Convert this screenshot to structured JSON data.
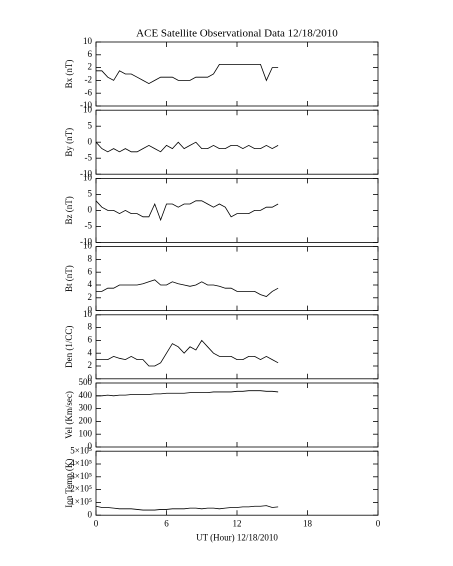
{
  "chart_data": [
    {
      "type": "line",
      "title": "ACE Satellite Observational Data   12/18/2010",
      "ylabel": "Bx (nT)",
      "x": [
        0,
        0.5,
        1,
        1.5,
        2,
        2.5,
        3,
        3.5,
        4,
        4.5,
        5,
        5.5,
        6,
        6.5,
        7,
        7.5,
        8,
        8.5,
        9,
        9.5,
        10,
        10.5,
        11,
        11.5,
        12,
        12.5,
        13,
        13.5,
        14,
        14.5,
        15,
        15.5
      ],
      "values": [
        1,
        1,
        -1,
        -2,
        1,
        0,
        0,
        -1,
        -2,
        -3,
        -2,
        -1,
        -1,
        -1,
        -2,
        -2,
        -2,
        -1,
        -1,
        -1,
        0,
        3,
        3,
        3,
        3,
        3,
        3,
        3,
        3,
        -2,
        2,
        2
      ],
      "ylim": [
        -10,
        10
      ],
      "yticks": [
        -10,
        -6,
        -2,
        2,
        6,
        10
      ],
      "color": "#000000"
    },
    {
      "type": "line",
      "ylabel": "By (nT)",
      "x": [
        0,
        0.5,
        1,
        1.5,
        2,
        2.5,
        3,
        3.5,
        4,
        4.5,
        5,
        5.5,
        6,
        6.5,
        7,
        7.5,
        8,
        8.5,
        9,
        9.5,
        10,
        10.5,
        11,
        11.5,
        12,
        12.5,
        13,
        13.5,
        14,
        14.5,
        15,
        15.5
      ],
      "values": [
        0,
        -2,
        -3,
        -2,
        -3,
        -2,
        -3,
        -3,
        -2,
        -1,
        -2,
        -3,
        -1,
        -2,
        0,
        -2,
        -1,
        0,
        -2,
        -2,
        -1,
        -2,
        -2,
        -1,
        -1,
        -2,
        -1,
        -2,
        -2,
        -1,
        -2,
        -1
      ],
      "ylim": [
        -10,
        10
      ],
      "yticks": [
        -10,
        -5,
        0,
        5,
        10
      ],
      "color": "#000000"
    },
    {
      "type": "line",
      "ylabel": "Bz (nT)",
      "x": [
        0,
        0.5,
        1,
        1.5,
        2,
        2.5,
        3,
        3.5,
        4,
        4.5,
        5,
        5.5,
        6,
        6.5,
        7,
        7.5,
        8,
        8.5,
        9,
        9.5,
        10,
        10.5,
        11,
        11.5,
        12,
        12.5,
        13,
        13.5,
        14,
        14.5,
        15,
        15.5
      ],
      "values": [
        3,
        1,
        0,
        0,
        -1,
        0,
        -1,
        -1,
        -2,
        -2,
        2,
        -3,
        2,
        2,
        1,
        2,
        2,
        3,
        3,
        2,
        1,
        2,
        1,
        -2,
        -1,
        -1,
        -1,
        0,
        0,
        1,
        1,
        2
      ],
      "ylim": [
        -10,
        10
      ],
      "yticks": [
        -10,
        -5,
        0,
        5,
        10
      ],
      "color": "#000000"
    },
    {
      "type": "line",
      "ylabel": "Bt (nT)",
      "x": [
        0,
        0.5,
        1,
        1.5,
        2,
        2.5,
        3,
        3.5,
        4,
        4.5,
        5,
        5.5,
        6,
        6.5,
        7,
        7.5,
        8,
        8.5,
        9,
        9.5,
        10,
        10.5,
        11,
        11.5,
        12,
        12.5,
        13,
        13.5,
        14,
        14.5,
        15,
        15.5
      ],
      "values": [
        3,
        3,
        3.5,
        3.5,
        4,
        4,
        4,
        4,
        4.2,
        4.5,
        4.8,
        4,
        4,
        4.5,
        4.2,
        4,
        3.8,
        4,
        4.5,
        4,
        4,
        3.8,
        3.5,
        3.5,
        3,
        3,
        3,
        3,
        2.5,
        2.2,
        3,
        3.5
      ],
      "ylim": [
        0,
        10
      ],
      "yticks": [
        0,
        2,
        4,
        6,
        8,
        10
      ],
      "color": "#000000"
    },
    {
      "type": "line",
      "ylabel": "Den (1/CC)",
      "x": [
        0,
        0.5,
        1,
        1.5,
        2,
        2.5,
        3,
        3.5,
        4,
        4.5,
        5,
        5.5,
        6,
        6.5,
        7,
        7.5,
        8,
        8.5,
        9,
        9.5,
        10,
        10.5,
        11,
        11.5,
        12,
        12.5,
        13,
        13.5,
        14,
        14.5,
        15,
        15.5
      ],
      "values": [
        3,
        3,
        3,
        3.5,
        3.2,
        3,
        3.5,
        3,
        3,
        2,
        2,
        2.5,
        4,
        5.5,
        5,
        4,
        5,
        4.5,
        6,
        5,
        4,
        3.5,
        3.5,
        3.5,
        3,
        3,
        3.5,
        3.5,
        3,
        3.5,
        3,
        2.5
      ],
      "ylim": [
        0,
        10
      ],
      "yticks": [
        0,
        2,
        4,
        6,
        8,
        10
      ],
      "color": "#000000"
    },
    {
      "type": "line",
      "ylabel": "Vel (Km/sec)",
      "x": [
        0,
        0.5,
        1,
        1.5,
        2,
        2.5,
        3,
        3.5,
        4,
        4.5,
        5,
        5.5,
        6,
        6.5,
        7,
        7.5,
        8,
        8.5,
        9,
        9.5,
        10,
        10.5,
        11,
        11.5,
        12,
        12.5,
        13,
        13.5,
        14,
        14.5,
        15,
        15.5
      ],
      "values": [
        400,
        400,
        405,
        400,
        405,
        405,
        410,
        410,
        410,
        410,
        415,
        415,
        420,
        420,
        420,
        420,
        425,
        425,
        425,
        425,
        430,
        430,
        430,
        430,
        435,
        435,
        440,
        440,
        440,
        435,
        435,
        430
      ],
      "ylim": [
        0,
        500
      ],
      "yticks": [
        0,
        100,
        200,
        300,
        400,
        500
      ],
      "color": "#000000"
    },
    {
      "type": "line",
      "ylabel": "Ion Temp (K)",
      "xlabel": "UT (Hour)   12/18/2010",
      "x": [
        0,
        0.5,
        1,
        1.5,
        2,
        2.5,
        3,
        3.5,
        4,
        4.5,
        5,
        5.5,
        6,
        6.5,
        7,
        7.5,
        8,
        8.5,
        9,
        9.5,
        10,
        10.5,
        11,
        11.5,
        12,
        12.5,
        13,
        13.5,
        14,
        14.5,
        15,
        15.5
      ],
      "values": [
        70000,
        60000,
        60000,
        55000,
        50000,
        50000,
        50000,
        45000,
        40000,
        40000,
        40000,
        45000,
        45000,
        50000,
        50000,
        50000,
        55000,
        55000,
        50000,
        55000,
        55000,
        50000,
        55000,
        60000,
        60000,
        65000,
        65000,
        70000,
        70000,
        75000,
        60000,
        65000
      ],
      "ylim": [
        0,
        500000
      ],
      "yticks": [
        0,
        {
          "value": 100000,
          "label": "1×10⁵"
        },
        {
          "value": 200000,
          "label": "2×10⁵"
        },
        {
          "value": 300000,
          "label": "3×10⁵"
        },
        {
          "value": 400000,
          "label": "4×10⁵"
        },
        {
          "value": 500000,
          "label": "5×10⁵"
        }
      ],
      "xlim": [
        0,
        24
      ],
      "xticks": [
        0,
        6,
        12,
        18,
        {
          "value": 24,
          "label": "0"
        }
      ],
      "color": "#000000"
    }
  ]
}
